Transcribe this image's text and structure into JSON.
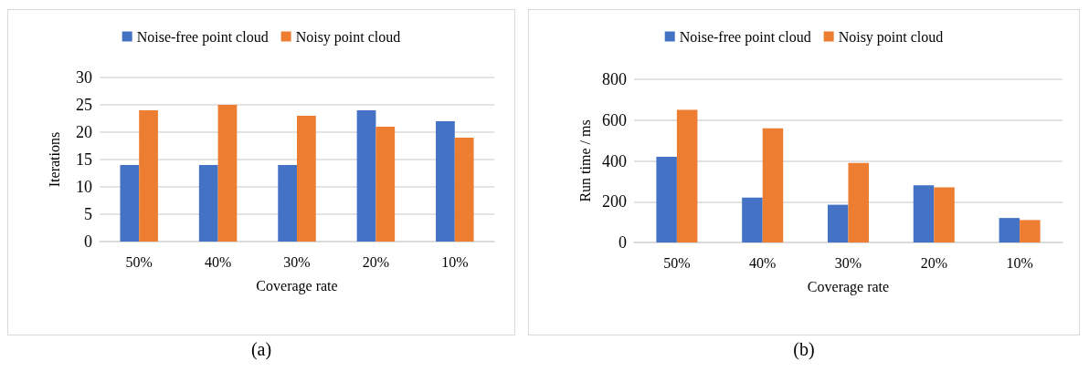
{
  "chart_data": [
    {
      "type": "bar",
      "categories": [
        "50%",
        "40%",
        "30%",
        "20%",
        "10%"
      ],
      "xlabel": "Coverage rate",
      "ylabel": "Iterations",
      "ylim": [
        0,
        30
      ],
      "yticks": [
        0,
        5,
        10,
        15,
        20,
        25,
        30
      ],
      "grid": "y",
      "legend": "top",
      "annotations": [
        "(a)"
      ],
      "series": [
        {
          "name": "Noise-free point cloud",
          "color": "#4472c4",
          "values": [
            14,
            14,
            14,
            24,
            22
          ]
        },
        {
          "name": "Noisy point cloud",
          "color": "#ed7d31",
          "values": [
            24,
            25,
            23,
            21,
            19
          ]
        }
      ]
    },
    {
      "type": "bar",
      "categories": [
        "50%",
        "40%",
        "30%",
        "20%",
        "10%"
      ],
      "xlabel": "Coverage rate",
      "ylabel": "Run time / ms",
      "ylim": [
        0,
        800
      ],
      "yticks": [
        0,
        200,
        400,
        600,
        800
      ],
      "grid": "y",
      "legend": "top",
      "annotations": [
        "(b)"
      ],
      "series": [
        {
          "name": "Noise-free point cloud",
          "color": "#4472c4",
          "values": [
            420,
            220,
            185,
            280,
            120
          ]
        },
        {
          "name": "Noisy point cloud",
          "color": "#ed7d31",
          "values": [
            650,
            560,
            390,
            270,
            110
          ]
        }
      ]
    }
  ]
}
